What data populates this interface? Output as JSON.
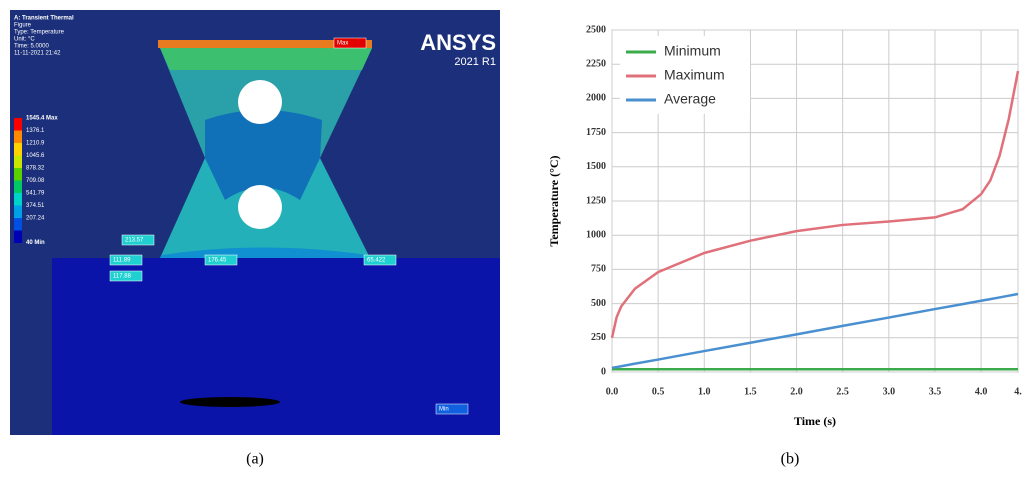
{
  "figure_a": {
    "caption": "(a)",
    "header": [
      "A: Transient Thermal",
      "Figure",
      "Type: Temperature",
      "Unit: °C",
      "Time: 5.0000",
      "11-11-2021 21:42"
    ],
    "logo": "ANSYS",
    "version": "2021 R1",
    "legend": [
      {
        "label": "1545.4 Max",
        "color": "#ff0000"
      },
      {
        "label": "1376.1",
        "color": "#ff8a00"
      },
      {
        "label": "1210.9",
        "color": "#ffd200"
      },
      {
        "label": "1045.6",
        "color": "#c8e600"
      },
      {
        "label": "878.32",
        "color": "#5ad200"
      },
      {
        "label": "709.08",
        "color": "#00c864"
      },
      {
        "label": "541.79",
        "color": "#00d2c8"
      },
      {
        "label": "374.51",
        "color": "#00a0e6"
      },
      {
        "label": "207.24",
        "color": "#0050e6"
      },
      {
        "label": "40 Min",
        "color": "#0000b4"
      }
    ],
    "probes": [
      "213.57",
      "111.89",
      "176.45",
      "65.422",
      "117.88",
      "Max",
      "Min"
    ]
  },
  "chart_data": {
    "type": "line",
    "caption": "(b)",
    "x_label": "Time (s)",
    "y_label": "Temperature (°C)",
    "x": [
      0,
      0.05,
      0.1,
      0.25,
      0.5,
      1,
      1.5,
      2,
      2.5,
      3,
      3.5,
      3.8,
      4,
      4.1,
      4.2,
      4.3,
      4.4
    ],
    "series": [
      {
        "name": "Minimum",
        "color": "#3aaa4a",
        "values": [
          20,
          20,
          20,
          20,
          20,
          20,
          20,
          20,
          20,
          20,
          20,
          20,
          20,
          20,
          20,
          20,
          20
        ]
      },
      {
        "name": "Maximum",
        "color": "#e0707a",
        "values": [
          250,
          400,
          480,
          610,
          730,
          870,
          960,
          1030,
          1075,
          1100,
          1130,
          1190,
          1300,
          1400,
          1580,
          1850,
          2200
        ]
      },
      {
        "name": "Average",
        "color": "#4a90d0",
        "values": [
          30,
          36,
          42,
          61,
          91,
          153,
          214,
          275,
          337,
          398,
          460,
          496,
          521,
          533,
          545,
          558,
          570
        ]
      }
    ],
    "xlim": [
      0,
      4.4
    ],
    "xticks": [
      {
        "value": 0,
        "label": "0.0"
      },
      0.5,
      {
        "value": 1,
        "label": "1.0"
      },
      1.5,
      {
        "value": 2,
        "label": "2.0"
      },
      2.5,
      {
        "value": 3,
        "label": "3.0"
      },
      3.5,
      {
        "value": 4,
        "label": "4.0"
      },
      {
        "value": 4.4,
        "label": "4."
      }
    ],
    "ylim": [
      0,
      2500
    ],
    "yticks": [
      0,
      250,
      500,
      750,
      1000,
      1250,
      1500,
      1750,
      2000,
      2250,
      2500
    ],
    "grid": true,
    "legend": "upper left"
  }
}
